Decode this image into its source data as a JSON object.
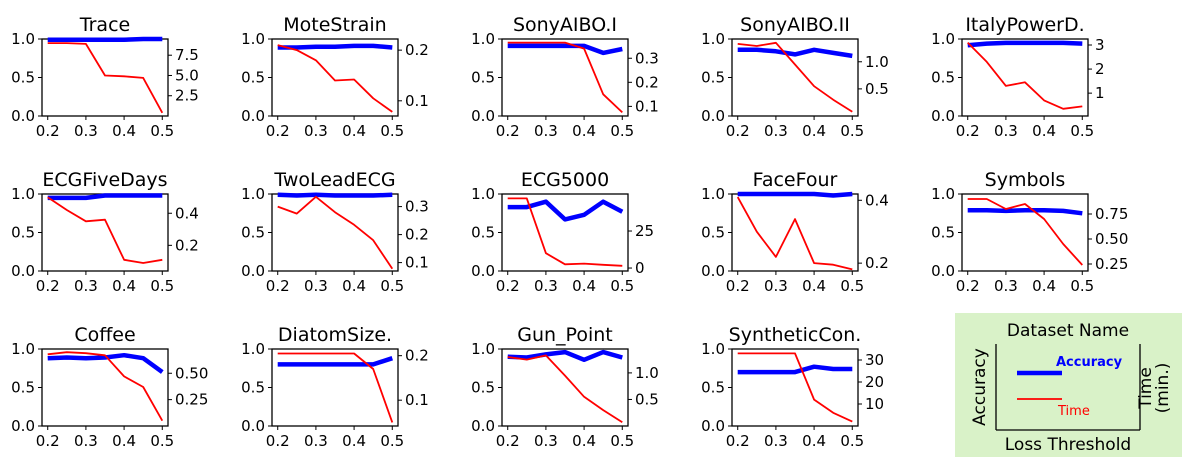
{
  "colors": {
    "accuracy": "#0000ff",
    "time": "#ff0000",
    "legend_bg": "#d9f2c8"
  },
  "legend": {
    "title": "Dataset Name",
    "accuracy_label": "Accuracy",
    "time_label": "Time",
    "left_axis_label": "Accuracy",
    "right_axis_label": "Time\n(min.)",
    "x_axis_label": "Loss Threshold"
  },
  "chart_data": [
    {
      "type": "line",
      "title": "Trace",
      "x": [
        0.2,
        0.25,
        0.3,
        0.35,
        0.4,
        0.45,
        0.5
      ],
      "series": [
        {
          "name": "Accuracy",
          "axis": "left",
          "values": [
            0.99,
            0.99,
            0.99,
            0.99,
            0.99,
            1.0,
            1.0
          ]
        },
        {
          "name": "Time",
          "axis": "right",
          "values": [
            9.0,
            9.0,
            8.9,
            5.0,
            4.9,
            4.7,
            0.4
          ]
        }
      ],
      "ylim": [
        0,
        1
      ],
      "y2lim": [
        0,
        9.5
      ],
      "xticks": [
        "0.2",
        "0.3",
        "0.4",
        "0.5"
      ],
      "yticks": [
        0.0,
        0.5,
        1.0
      ],
      "yticklabels": [
        "0.0",
        "0.5",
        "1.0"
      ],
      "y2ticks": [
        2.5,
        5.0,
        7.5
      ],
      "y2ticklabels": [
        "2.5",
        "5.0",
        "7.5"
      ]
    },
    {
      "type": "line",
      "title": "MoteStrain",
      "x": [
        0.2,
        0.25,
        0.3,
        0.35,
        0.4,
        0.45,
        0.5
      ],
      "series": [
        {
          "name": "Accuracy",
          "axis": "left",
          "values": [
            0.89,
            0.89,
            0.9,
            0.9,
            0.91,
            0.91,
            0.89
          ]
        },
        {
          "name": "Time",
          "axis": "right",
          "values": [
            0.21,
            0.2,
            0.18,
            0.14,
            0.142,
            0.105,
            0.078
          ]
        }
      ],
      "ylim": [
        0,
        1
      ],
      "y2lim": [
        0.07,
        0.222
      ],
      "xticks": [
        "0.2",
        "0.3",
        "0.4",
        "0.5"
      ],
      "yticks": [
        0.0,
        0.5,
        1.0
      ],
      "yticklabels": [
        "0.0",
        "0.5",
        "1.0"
      ],
      "y2ticks": [
        0.1,
        0.2
      ],
      "y2ticklabels": [
        "0.1",
        "0.2"
      ]
    },
    {
      "type": "line",
      "title": "SonyAIBO.I",
      "x": [
        0.2,
        0.25,
        0.3,
        0.35,
        0.4,
        0.45,
        0.5
      ],
      "series": [
        {
          "name": "Accuracy",
          "axis": "left",
          "values": [
            0.91,
            0.91,
            0.91,
            0.91,
            0.91,
            0.82,
            0.87
          ]
        },
        {
          "name": "Time",
          "axis": "right",
          "values": [
            0.365,
            0.365,
            0.365,
            0.365,
            0.34,
            0.15,
            0.075
          ]
        }
      ],
      "ylim": [
        0,
        1
      ],
      "y2lim": [
        0.06,
        0.38
      ],
      "xticks": [
        "0.2",
        "0.3",
        "0.4",
        "0.5"
      ],
      "yticks": [
        0.0,
        0.5,
        1.0
      ],
      "yticklabels": [
        "0.0",
        "0.5",
        "1.0"
      ],
      "y2ticks": [
        0.1,
        0.2,
        0.3
      ],
      "y2ticklabels": [
        "0.1",
        "0.2",
        "0.3"
      ]
    },
    {
      "type": "line",
      "title": "SonyAIBO.II",
      "x": [
        0.2,
        0.25,
        0.3,
        0.35,
        0.4,
        0.45,
        0.5
      ],
      "series": [
        {
          "name": "Accuracy",
          "axis": "left",
          "values": [
            0.86,
            0.86,
            0.84,
            0.8,
            0.86,
            0.82,
            0.78
          ]
        },
        {
          "name": "Time",
          "axis": "right",
          "values": [
            1.33,
            1.29,
            1.35,
            0.95,
            0.55,
            0.3,
            0.08
          ]
        }
      ],
      "ylim": [
        0,
        1
      ],
      "y2lim": [
        0,
        1.42
      ],
      "xticks": [
        "0.2",
        "0.3",
        "0.4",
        "0.5"
      ],
      "yticks": [
        0.0,
        0.5,
        1.0
      ],
      "yticklabels": [
        "0.0",
        "0.5",
        "1.0"
      ],
      "y2ticks": [
        0.5,
        1.0
      ],
      "y2ticklabels": [
        "0.5",
        "1.0"
      ]
    },
    {
      "type": "line",
      "title": "ItalyPowerD.",
      "x": [
        0.2,
        0.25,
        0.3,
        0.35,
        0.4,
        0.45,
        0.5
      ],
      "series": [
        {
          "name": "Accuracy",
          "axis": "left",
          "values": [
            0.92,
            0.94,
            0.95,
            0.95,
            0.95,
            0.95,
            0.94
          ]
        },
        {
          "name": "Time",
          "axis": "right",
          "values": [
            3.1,
            2.3,
            1.3,
            1.45,
            0.7,
            0.35,
            0.45
          ]
        }
      ],
      "ylim": [
        0,
        1
      ],
      "y2lim": [
        0.05,
        3.25
      ],
      "xticks": [
        "0.2",
        "0.3",
        "0.4",
        "0.5"
      ],
      "yticks": [
        0.0,
        0.5,
        1.0
      ],
      "yticklabels": [
        "0.0",
        "0.5",
        "1.0"
      ],
      "y2ticks": [
        1,
        2,
        3
      ],
      "y2ticklabels": [
        "1",
        "2",
        "3"
      ]
    },
    {
      "type": "line",
      "title": "ECGFiveDays",
      "x": [
        0.2,
        0.25,
        0.3,
        0.35,
        0.4,
        0.45,
        0.5
      ],
      "series": [
        {
          "name": "Accuracy",
          "axis": "left",
          "values": [
            0.95,
            0.95,
            0.95,
            0.98,
            0.98,
            0.98,
            0.98
          ]
        },
        {
          "name": "Time",
          "axis": "right",
          "values": [
            0.5,
            0.42,
            0.35,
            0.36,
            0.11,
            0.09,
            0.11
          ]
        }
      ],
      "ylim": [
        0,
        1
      ],
      "y2lim": [
        0.04,
        0.52
      ],
      "xticks": [
        "0.2",
        "0.3",
        "0.4",
        "0.5"
      ],
      "yticks": [
        0.0,
        0.5,
        1.0
      ],
      "yticklabels": [
        "0.0",
        "0.5",
        "1.0"
      ],
      "y2ticks": [
        0.2,
        0.4
      ],
      "y2ticklabels": [
        "0.2",
        "0.4"
      ]
    },
    {
      "type": "line",
      "title": "TwoLeadECG",
      "x": [
        0.2,
        0.25,
        0.3,
        0.35,
        0.4,
        0.45,
        0.5
      ],
      "series": [
        {
          "name": "Accuracy",
          "axis": "left",
          "values": [
            0.99,
            0.98,
            0.99,
            0.98,
            0.98,
            0.98,
            0.99
          ]
        },
        {
          "name": "Time",
          "axis": "right",
          "values": [
            0.3,
            0.275,
            0.335,
            0.28,
            0.235,
            0.18,
            0.078
          ]
        }
      ],
      "ylim": [
        0,
        1
      ],
      "y2lim": [
        0.07,
        0.345
      ],
      "xticks": [
        "0.2",
        "0.3",
        "0.4",
        "0.5"
      ],
      "yticks": [
        0.0,
        0.5,
        1.0
      ],
      "yticklabels": [
        "0.0",
        "0.5",
        "1.0"
      ],
      "y2ticks": [
        0.1,
        0.2,
        0.3
      ],
      "y2ticklabels": [
        "0.1",
        "0.2",
        "0.3"
      ]
    },
    {
      "type": "line",
      "title": "ECG5000",
      "x": [
        0.2,
        0.25,
        0.3,
        0.35,
        0.4,
        0.45,
        0.5
      ],
      "series": [
        {
          "name": "Accuracy",
          "axis": "left",
          "values": [
            0.83,
            0.83,
            0.9,
            0.67,
            0.73,
            0.9,
            0.77
          ]
        },
        {
          "name": "Time",
          "axis": "right",
          "values": [
            47,
            47,
            10,
            2.5,
            3.0,
            2.2,
            1.5
          ]
        }
      ],
      "ylim": [
        0,
        1
      ],
      "y2lim": [
        -2,
        50
      ],
      "xticks": [
        "0.2",
        "0.3",
        "0.4",
        "0.5"
      ],
      "yticks": [
        0.0,
        0.5,
        1.0
      ],
      "yticklabels": [
        "0.0",
        "0.5",
        "1.0"
      ],
      "y2ticks": [
        0,
        25
      ],
      "y2ticklabels": [
        "0",
        "25"
      ]
    },
    {
      "type": "line",
      "title": "FaceFour",
      "x": [
        0.2,
        0.25,
        0.3,
        0.35,
        0.4,
        0.45,
        0.5
      ],
      "series": [
        {
          "name": "Accuracy",
          "axis": "left",
          "values": [
            1.0,
            1.0,
            1.0,
            1.0,
            1.0,
            0.98,
            1.0
          ]
        },
        {
          "name": "Time",
          "axis": "right",
          "values": [
            0.41,
            0.3,
            0.22,
            0.34,
            0.2,
            0.195,
            0.18
          ]
        }
      ],
      "ylim": [
        0,
        1
      ],
      "y2lim": [
        0.175,
        0.42
      ],
      "xticks": [
        "0.2",
        "0.3",
        "0.4",
        "0.5"
      ],
      "yticks": [
        0.0,
        0.5,
        1.0
      ],
      "yticklabels": [
        "0.0",
        "0.5",
        "1.0"
      ],
      "y2ticks": [
        0.2,
        0.4
      ],
      "y2ticklabels": [
        "0.2",
        "0.4"
      ]
    },
    {
      "type": "line",
      "title": "Symbols",
      "x": [
        0.2,
        0.25,
        0.3,
        0.35,
        0.4,
        0.45,
        0.5
      ],
      "series": [
        {
          "name": "Accuracy",
          "axis": "left",
          "values": [
            0.79,
            0.79,
            0.78,
            0.79,
            0.79,
            0.78,
            0.75
          ]
        },
        {
          "name": "Time",
          "axis": "right",
          "values": [
            0.9,
            0.9,
            0.8,
            0.85,
            0.7,
            0.45,
            0.24
          ]
        }
      ],
      "ylim": [
        0,
        1
      ],
      "y2lim": [
        0.18,
        0.95
      ],
      "xticks": [
        "0.2",
        "0.3",
        "0.4",
        "0.5"
      ],
      "yticks": [
        0.0,
        0.5,
        1.0
      ],
      "yticklabels": [
        "0.0",
        "0.5",
        "1.0"
      ],
      "y2ticks": [
        0.25,
        0.5,
        0.75
      ],
      "y2ticklabels": [
        "0.25",
        "0.50",
        "0.75"
      ]
    },
    {
      "type": "line",
      "title": "Coffee",
      "x": [
        0.2,
        0.25,
        0.3,
        0.35,
        0.4,
        0.45,
        0.5
      ],
      "series": [
        {
          "name": "Accuracy",
          "axis": "left",
          "values": [
            0.88,
            0.89,
            0.88,
            0.89,
            0.92,
            0.88,
            0.7
          ]
        },
        {
          "name": "Time",
          "axis": "right",
          "values": [
            0.68,
            0.7,
            0.69,
            0.67,
            0.47,
            0.37,
            0.05
          ]
        }
      ],
      "ylim": [
        0,
        1
      ],
      "y2lim": [
        0.0,
        0.73
      ],
      "xticks": [
        "0.2",
        "0.3",
        "0.4",
        "0.5"
      ],
      "yticks": [
        0.0,
        0.5,
        1.0
      ],
      "yticklabels": [
        "0.0",
        "0.5",
        "1.0"
      ],
      "y2ticks": [
        0.25,
        0.5
      ],
      "y2ticklabels": [
        "0.25",
        "0.50"
      ]
    },
    {
      "type": "line",
      "title": "DiatomSize.",
      "x": [
        0.2,
        0.25,
        0.3,
        0.35,
        0.4,
        0.45,
        0.5
      ],
      "series": [
        {
          "name": "Accuracy",
          "axis": "left",
          "values": [
            0.8,
            0.8,
            0.8,
            0.8,
            0.8,
            0.8,
            0.88
          ]
        },
        {
          "name": "Time",
          "axis": "right",
          "values": [
            0.205,
            0.205,
            0.205,
            0.205,
            0.205,
            0.17,
            0.05
          ]
        }
      ],
      "ylim": [
        0,
        1
      ],
      "y2lim": [
        0.042,
        0.215
      ],
      "xticks": [
        "0.2",
        "0.3",
        "0.4",
        "0.5"
      ],
      "yticks": [
        0.0,
        0.5,
        1.0
      ],
      "yticklabels": [
        "0.0",
        "0.5",
        "1.0"
      ],
      "y2ticks": [
        0.1,
        0.2
      ],
      "y2ticklabels": [
        "0.1",
        "0.2"
      ]
    },
    {
      "type": "line",
      "title": "Gun_Point",
      "x": [
        0.2,
        0.25,
        0.3,
        0.35,
        0.4,
        0.45,
        0.5
      ],
      "series": [
        {
          "name": "Accuracy",
          "axis": "left",
          "values": [
            0.9,
            0.89,
            0.93,
            0.96,
            0.86,
            0.96,
            0.89
          ]
        },
        {
          "name": "Time",
          "axis": "right",
          "values": [
            1.3,
            1.25,
            1.33,
            0.95,
            0.55,
            0.3,
            0.07
          ]
        }
      ],
      "ylim": [
        0,
        1
      ],
      "y2lim": [
        0,
        1.45
      ],
      "xticks": [
        "0.2",
        "0.3",
        "0.4",
        "0.5"
      ],
      "yticks": [
        0.0,
        0.5,
        1.0
      ],
      "yticklabels": [
        "0.0",
        "0.5",
        "1.0"
      ],
      "y2ticks": [
        0.5,
        1.0
      ],
      "y2ticklabels": [
        "0.5",
        "1.0"
      ]
    },
    {
      "type": "line",
      "title": "SyntheticCon.",
      "x": [
        0.2,
        0.25,
        0.3,
        0.35,
        0.4,
        0.45,
        0.5
      ],
      "series": [
        {
          "name": "Accuracy",
          "axis": "left",
          "values": [
            0.7,
            0.7,
            0.7,
            0.7,
            0.77,
            0.74,
            0.74
          ]
        },
        {
          "name": "Time",
          "axis": "right",
          "values": [
            33,
            33,
            33,
            33,
            12,
            6,
            2
          ]
        }
      ],
      "ylim": [
        0,
        1
      ],
      "y2lim": [
        0,
        35
      ],
      "xticks": [
        "0.2",
        "0.3",
        "0.4",
        "0.5"
      ],
      "yticks": [
        0.0,
        0.5,
        1.0
      ],
      "yticklabels": [
        "0.0",
        "0.5",
        "1.0"
      ],
      "y2ticks": [
        10,
        20,
        30
      ],
      "y2ticklabels": [
        "10",
        "20",
        "30"
      ]
    }
  ]
}
